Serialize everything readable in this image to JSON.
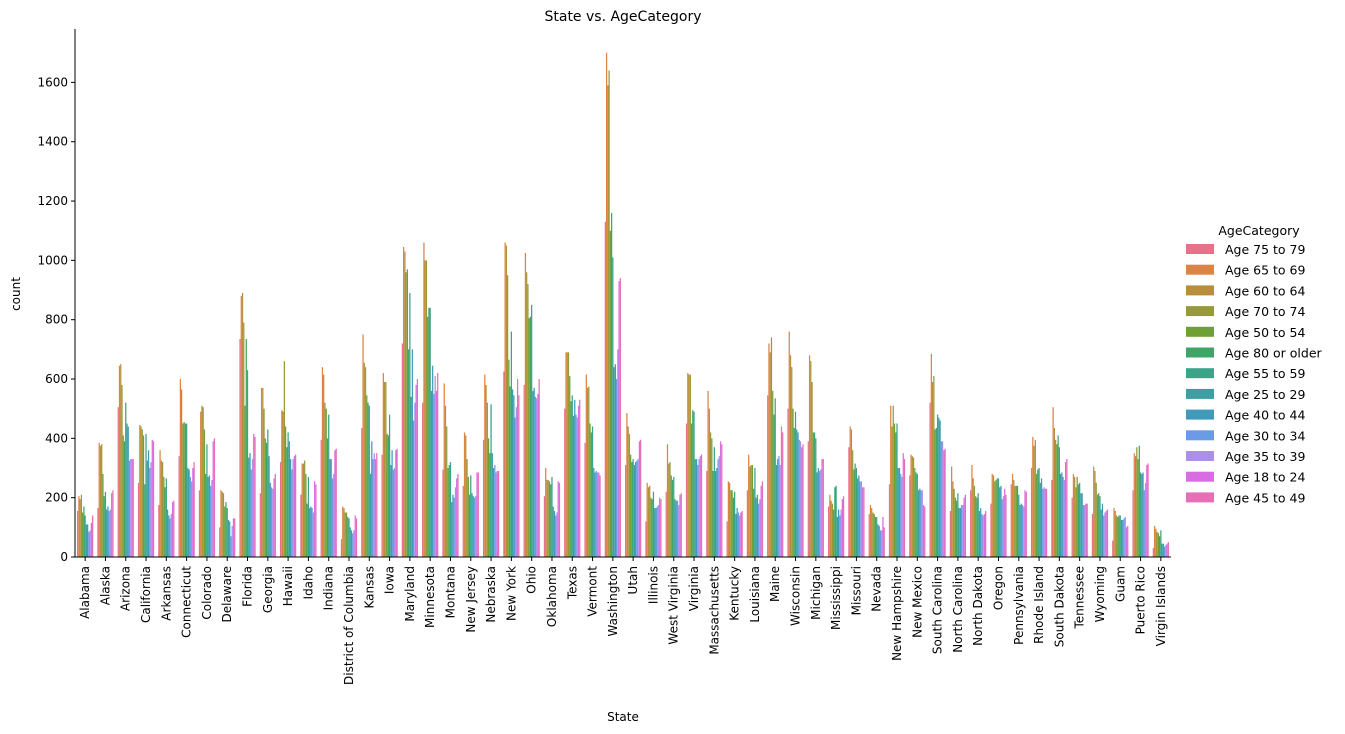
{
  "chart_data": {
    "type": "bar",
    "title": "State vs. AgeCategory",
    "xlabel": "State",
    "ylabel": "count",
    "ylim": [
      0,
      1780
    ],
    "yticks": [
      0,
      200,
      400,
      600,
      800,
      1000,
      1200,
      1400,
      1600
    ],
    "legend_title": "AgeCategory",
    "legend_position": "right",
    "grid": false,
    "categories": [
      "Alabama",
      "Alaska",
      "Arizona",
      "California",
      "Arkansas",
      "Connecticut",
      "Colorado",
      "Delaware",
      "Florida",
      "Georgia",
      "Hawaii",
      "Idaho",
      "Indiana",
      "District of Columbia",
      "Kansas",
      "Iowa",
      "Maryland",
      "Minnesota",
      "Montana",
      "New Jersey",
      "Nebraska",
      "New York",
      "Ohio",
      "Oklahoma",
      "Texas",
      "Vermont",
      "Washington",
      "Utah",
      "Illinois",
      "West Virginia",
      "Virginia",
      "Massachusetts",
      "Kentucky",
      "Louisiana",
      "Maine",
      "Wisconsin",
      "Michigan",
      "Mississippi",
      "Missouri",
      "Nevada",
      "New Hampshire",
      "New Mexico",
      "South Carolina",
      "North Carolina",
      "North Dakota",
      "Oregon",
      "Pennsylvania",
      "Rhode Island",
      "South Dakota",
      "Tennessee",
      "Wyoming",
      "Guam",
      "Puerto Rico",
      "Virgin Islands"
    ],
    "series": [
      {
        "name": "Age 75 to 79",
        "color": "#e8718a",
        "values": [
          155,
          165,
          505,
          250,
          175,
          340,
          225,
          100,
          735,
          215,
          320,
          210,
          395,
          60,
          435,
          345,
          720,
          520,
          295,
          240,
          395,
          625,
          580,
          205,
          500,
          385,
          1130,
          310,
          120,
          220,
          450,
          290,
          120,
          225,
          545,
          500,
          390,
          170,
          370,
          145,
          245,
          275,
          520,
          155,
          225,
          180,
          245,
          300,
          260,
          200,
          145,
          55,
          225,
          30
        ]
      },
      {
        "name": "Age 65 to 69",
        "color": "#dc8346",
        "values": [
          205,
          385,
          645,
          445,
          360,
          600,
          490,
          225,
          880,
          570,
          495,
          315,
          640,
          170,
          750,
          620,
          1045,
          1060,
          585,
          420,
          615,
          1060,
          1025,
          300,
          690,
          615,
          1700,
          485,
          250,
          380,
          620,
          560,
          255,
          345,
          720,
          760,
          680,
          210,
          440,
          175,
          510,
          345,
          685,
          305,
          310,
          280,
          280,
          405,
          505,
          280,
          305,
          165,
          350,
          105
        ]
      },
      {
        "name": "Age 60 to 64",
        "color": "#b78f3a",
        "values": [
          195,
          375,
          650,
          440,
          325,
          565,
          510,
          220,
          890,
          570,
          490,
          315,
          615,
          165,
          655,
          590,
          1030,
          1000,
          510,
          410,
          580,
          1050,
          960,
          260,
          690,
          570,
          1590,
          440,
          235,
          315,
          615,
          500,
          250,
          305,
          690,
          680,
          660,
          190,
          430,
          165,
          440,
          340,
          590,
          255,
          265,
          275,
          260,
          375,
          435,
          270,
          290,
          155,
          340,
          95
        ]
      },
      {
        "name": "Age 70 to 74",
        "color": "#979a39",
        "values": [
          210,
          380,
          580,
          430,
          320,
          450,
          505,
          215,
          790,
          500,
          660,
          325,
          520,
          150,
          640,
          590,
          960,
          1000,
          440,
          330,
          520,
          950,
          920,
          260,
          690,
          575,
          1640,
          415,
          240,
          320,
          615,
          420,
          225,
          310,
          740,
          640,
          590,
          180,
          360,
          150,
          510,
          335,
          610,
          230,
          240,
          255,
          240,
          395,
          395,
          235,
          250,
          140,
          370,
          85
        ]
      },
      {
        "name": "Age 50 to 54",
        "color": "#6fa035",
        "values": [
          150,
          280,
          410,
          410,
          270,
          455,
          430,
          170,
          510,
          400,
          440,
          280,
          500,
          150,
          545,
          415,
          970,
          810,
          300,
          270,
          400,
          665,
          805,
          255,
          610,
          450,
          1100,
          345,
          200,
          275,
          450,
          400,
          225,
          310,
          560,
          500,
          420,
          160,
          295,
          145,
          450,
          300,
          430,
          200,
          205,
          260,
          240,
          280,
          380,
          270,
          210,
          135,
          330,
          80
        ]
      },
      {
        "name": "Age 80 or older",
        "color": "#3ea567",
        "values": [
          170,
          205,
          390,
          245,
          235,
          450,
          280,
          185,
          735,
          385,
          370,
          180,
          400,
          135,
          520,
          410,
          700,
          840,
          310,
          210,
          350,
          575,
          810,
          245,
          525,
          420,
          1160,
          320,
          195,
          260,
          495,
          290,
          200,
          230,
          480,
          435,
          420,
          235,
          315,
          135,
          420,
          285,
          435,
          190,
          200,
          265,
          240,
          295,
          410,
          245,
          215,
          140,
          375,
          70
        ]
      },
      {
        "name": "Age 55 to 59",
        "color": "#3ba387",
        "values": [
          140,
          220,
          520,
          415,
          265,
          450,
          380,
          165,
          630,
          430,
          420,
          270,
          480,
          130,
          510,
          480,
          890,
          840,
          320,
          275,
          515,
          760,
          850,
          270,
          545,
          440,
          1010,
          330,
          220,
          270,
          490,
          370,
          220,
          300,
          535,
          490,
          400,
          240,
          300,
          135,
          450,
          280,
          480,
          215,
          215,
          265,
          210,
          300,
          370,
          250,
          205,
          140,
          285,
          90
        ]
      },
      {
        "name": "Age 25 to 29",
        "color": "#3d9fa1",
        "values": [
          110,
          160,
          450,
          325,
          160,
          300,
          270,
          125,
          335,
          340,
          390,
          165,
          330,
          100,
          280,
          310,
          540,
          560,
          185,
          215,
          350,
          565,
          560,
          170,
          475,
          300,
          640,
          310,
          165,
          195,
          330,
          290,
          145,
          200,
          310,
          430,
          285,
          135,
          265,
          110,
          300,
          225,
          470,
          165,
          155,
          235,
          175,
          250,
          280,
          215,
          160,
          125,
          280,
          45
        ]
      },
      {
        "name": "Age 40 to 44",
        "color": "#409aba",
        "values": [
          110,
          170,
          440,
          360,
          140,
          295,
          275,
          120,
          350,
          250,
          330,
          170,
          330,
          90,
          390,
          360,
          700,
          645,
          210,
          205,
          300,
          545,
          570,
          155,
          530,
          285,
          650,
          320,
          165,
          190,
          330,
          300,
          165,
          210,
          330,
          420,
          300,
          160,
          275,
          105,
          300,
          230,
          460,
          165,
          165,
          240,
          180,
          265,
          285,
          215,
          180,
          125,
          285,
          45
        ]
      },
      {
        "name": "Age 30 to 34",
        "color": "#6c9be5",
        "values": [
          85,
          155,
          325,
          300,
          130,
          270,
          240,
          70,
          295,
          235,
          295,
          165,
          265,
          80,
          330,
          295,
          460,
          550,
          200,
          200,
          310,
          470,
          540,
          140,
          480,
          290,
          600,
          325,
          170,
          190,
          310,
          330,
          150,
          180,
          340,
          395,
          290,
          140,
          255,
          90,
          280,
          225,
          390,
          175,
          145,
          195,
          175,
          230,
          270,
          175,
          140,
          130,
          225,
          35
        ]
      },
      {
        "name": "Age 35 to 39",
        "color": "#ab8fe8",
        "values": [
          90,
          160,
          330,
          320,
          145,
          255,
          260,
          105,
          330,
          230,
          330,
          150,
          280,
          90,
          350,
          300,
          520,
          610,
          235,
          205,
          285,
          505,
          535,
          150,
          470,
          285,
          700,
          330,
          175,
          175,
          330,
          340,
          140,
          195,
          310,
          390,
          295,
          160,
          255,
          90,
          270,
          225,
          390,
          175,
          140,
          205,
          170,
          235,
          260,
          175,
          150,
          135,
          250,
          40
        ]
      },
      {
        "name": "Age 18 to 24",
        "color": "#d86ce3",
        "values": [
          115,
          215,
          330,
          395,
          185,
          300,
          390,
          130,
          415,
          265,
          340,
          255,
          360,
          140,
          330,
          360,
          580,
          560,
          265,
          285,
          290,
          600,
          550,
          255,
          510,
          285,
          930,
          390,
          200,
          210,
          340,
          390,
          150,
          240,
          440,
          370,
          330,
          195,
          235,
          135,
          350,
          175,
          360,
          200,
          145,
          230,
          225,
          230,
          320,
          180,
          155,
          100,
          310,
          45
        ]
      },
      {
        "name": "Age 45 to 49",
        "color": "#e66eb5",
        "values": [
          140,
          225,
          330,
          390,
          190,
          320,
          400,
          130,
          405,
          280,
          345,
          245,
          365,
          130,
          350,
          365,
          600,
          620,
          280,
          285,
          290,
          545,
          600,
          250,
          530,
          275,
          940,
          395,
          195,
          215,
          345,
          380,
          155,
          255,
          420,
          380,
          330,
          205,
          235,
          100,
          330,
          170,
          365,
          210,
          155,
          210,
          220,
          230,
          330,
          180,
          160,
          105,
          315,
          50
        ]
      }
    ]
  }
}
